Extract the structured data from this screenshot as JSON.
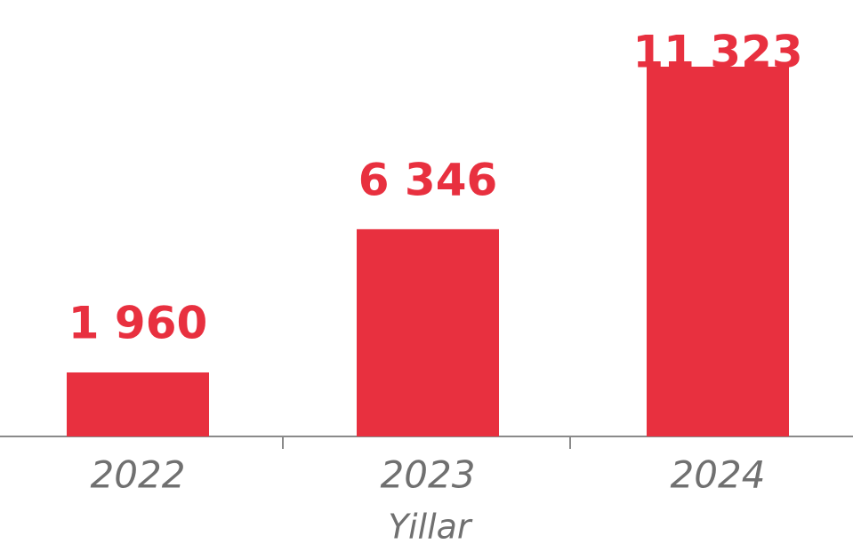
{
  "chart_data": {
    "type": "bar",
    "x_label": "Yillar",
    "categories": [
      "2022",
      "2023",
      "2024"
    ],
    "values": [
      1960,
      6346,
      11323
    ],
    "value_labels": [
      "1 960",
      "6 346",
      "11 323"
    ],
    "color": "#e8303f"
  }
}
